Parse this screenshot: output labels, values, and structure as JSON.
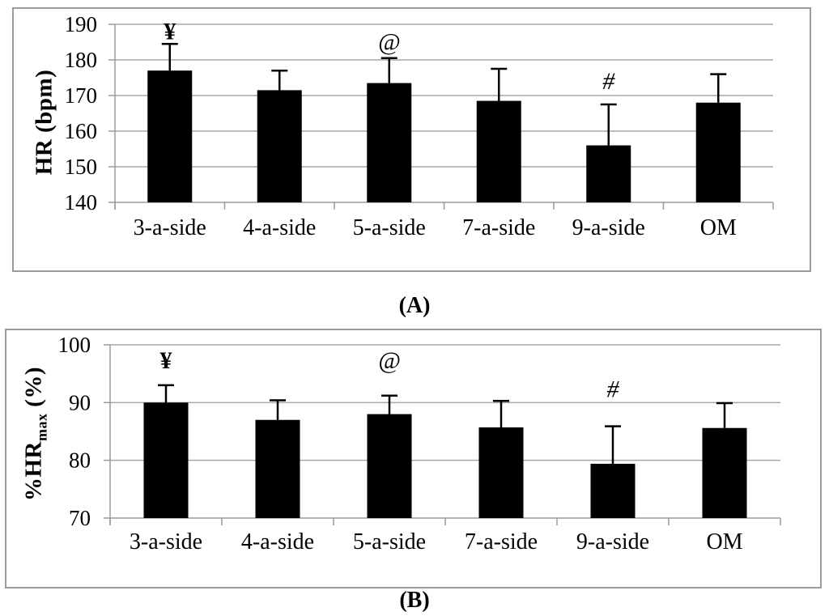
{
  "figure": {
    "background": "#ffffff",
    "captions": {
      "a": "(A)",
      "b": "(B)"
    }
  },
  "chart_data": [
    {
      "id": "A",
      "type": "bar",
      "title": "",
      "xlabel": "",
      "ylabel_plain": "HR (bpm)",
      "ylabel": {
        "prefix": "HR (bpm)",
        "sub": "",
        "suffix": ""
      },
      "ylim": [
        140,
        190
      ],
      "yticks": [
        140,
        150,
        160,
        170,
        180,
        190
      ],
      "categories": [
        "3-a-side",
        "4-a-side",
        "5-a-side",
        "7-a-side",
        "9-a-side",
        "OM"
      ],
      "values": [
        177,
        171.5,
        173.5,
        168.5,
        156,
        168
      ],
      "error_plus": [
        7.5,
        5.5,
        7,
        9,
        11.5,
        8
      ],
      "annotations": [
        {
          "symbol": "¥",
          "category": 0,
          "value": 188,
          "style": "bold"
        },
        {
          "symbol": "@",
          "category": 2,
          "value": 185,
          "style": "italic"
        },
        {
          "symbol": "#",
          "category": 4,
          "value": 174,
          "style": "italic"
        }
      ],
      "bar_color": "#000000",
      "error_color": "#000000",
      "grid_color": "#a6a6a6",
      "axis_color": "#9b9b9b",
      "grid": true,
      "legend": "none"
    },
    {
      "id": "B",
      "type": "bar",
      "title": "",
      "xlabel": "",
      "ylabel_plain": "%HRmax (%)",
      "ylabel": {
        "prefix": "%HR",
        "sub": "max",
        "suffix": " (%)"
      },
      "ylim": [
        70,
        100
      ],
      "yticks": [
        70,
        80,
        90,
        100
      ],
      "categories": [
        "3-a-side",
        "4-a-side",
        "5-a-side",
        "7-a-side",
        "9-a-side",
        "OM"
      ],
      "values": [
        90,
        87,
        88,
        85.7,
        79.4,
        85.6
      ],
      "error_plus": [
        3,
        3.4,
        3.2,
        4.6,
        6.5,
        4.3
      ],
      "annotations": [
        {
          "symbol": "¥",
          "category": 0,
          "value": 97.3,
          "style": "bold"
        },
        {
          "symbol": "@",
          "category": 2,
          "value": 97.3,
          "style": "italic"
        },
        {
          "symbol": "#",
          "category": 4,
          "value": 92.3,
          "style": "italic"
        }
      ],
      "bar_color": "#000000",
      "error_color": "#000000",
      "grid_color": "#a6a6a6",
      "axis_color": "#9b9b9b",
      "grid": true,
      "legend": "none"
    }
  ]
}
